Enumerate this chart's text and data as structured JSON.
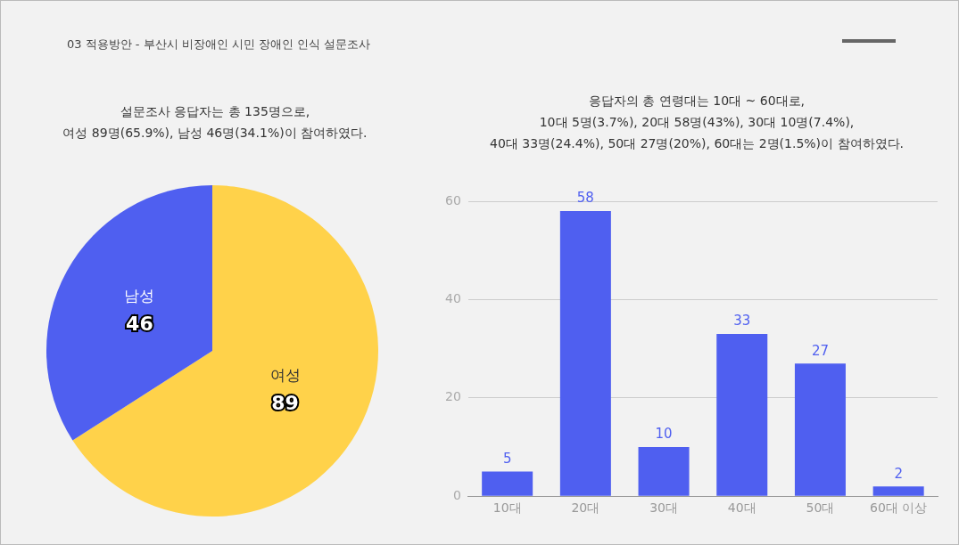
{
  "chart_data": [
    {
      "type": "pie",
      "title": "설문조사 응답자는 총 135명으로,\n여성 89명(65.9%), 남성 46명(34.1%)이 참여하였다.",
      "annotations": [
        "03 적용방안 - 부산시 비장애인 시민 장애인 인식 설문조사"
      ],
      "categories": [
        "여성",
        "남성"
      ],
      "values": [
        89,
        46
      ],
      "colors": [
        "#ffd24a",
        "#4f5ff0"
      ],
      "data_labels": true,
      "legend": false
    },
    {
      "type": "bar",
      "title": "응답자의 총 연령대는 10대 ~ 60대로,\n10대 5명(3.7%), 20대 58명(43%), 30대 10명(7.4%),\n40대 33명(24.4%), 50대 27명(20%), 60대는 2명(1.5%)이 참여하였다.",
      "categories": [
        "10대",
        "20대",
        "30대",
        "40대",
        "50대",
        "60대 이상"
      ],
      "values": [
        5,
        58,
        10,
        33,
        27,
        2
      ],
      "color": "#4f5ff0",
      "ylim": [
        0,
        60
      ],
      "yticks": [
        0,
        20,
        40,
        60
      ],
      "grid": "y",
      "data_labels": true,
      "legend": false
    }
  ]
}
